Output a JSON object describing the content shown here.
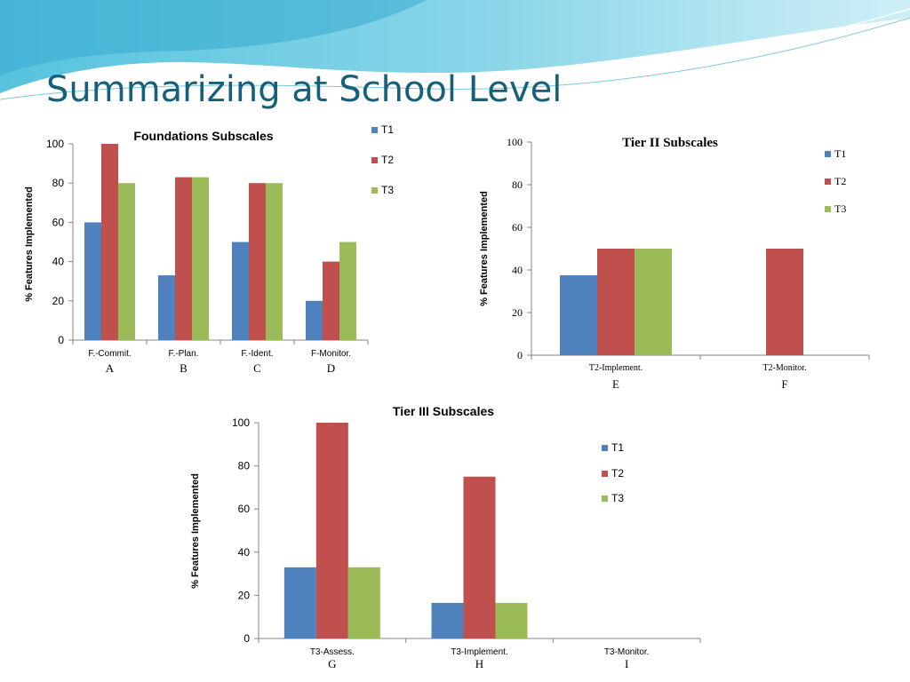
{
  "slide": {
    "title": "Summarizing at School Level"
  },
  "colors": {
    "T1": "#4f81bd",
    "T2": "#c0504d",
    "T3": "#9bbb59"
  },
  "chart_data": [
    {
      "type": "bar",
      "title": "Foundations Subscales",
      "ylabel": "% Features Implemented",
      "ylim": [
        0,
        100
      ],
      "yticks": [
        0,
        20,
        40,
        60,
        80,
        100
      ],
      "categories": [
        "F.-Commit.",
        "F.-Plan.",
        "F.-Ident.",
        "F-Monitor."
      ],
      "annotations": [
        "A",
        "B",
        "C",
        "D"
      ],
      "legend_position": "top-right",
      "grid": false,
      "series": [
        {
          "name": "T1",
          "values": [
            60,
            33,
            50,
            20
          ]
        },
        {
          "name": "T2",
          "values": [
            100,
            83,
            80,
            40
          ]
        },
        {
          "name": "T3",
          "values": [
            80,
            83,
            80,
            50
          ]
        }
      ]
    },
    {
      "type": "bar",
      "title": "Tier II Subscales",
      "ylabel": "% Features Implemented",
      "ylim": [
        0,
        100
      ],
      "yticks": [
        0,
        20,
        40,
        60,
        80,
        100
      ],
      "categories": [
        "T2-Implement.",
        "T2-Monitor."
      ],
      "annotations": [
        "E",
        "F"
      ],
      "legend_position": "top-right",
      "grid": false,
      "series": [
        {
          "name": "T1",
          "values": [
            37.5,
            0
          ]
        },
        {
          "name": "T2",
          "values": [
            50,
            50
          ]
        },
        {
          "name": "T3",
          "values": [
            50,
            0
          ]
        }
      ]
    },
    {
      "type": "bar",
      "title": "Tier III Subscales",
      "ylabel": "% Features Implemented",
      "ylim": [
        0,
        100
      ],
      "yticks": [
        0,
        20,
        40,
        60,
        80,
        100
      ],
      "categories": [
        "T3-Assess.",
        "T3-Implement.",
        "T3-Monitor."
      ],
      "annotations": [
        "G",
        "H",
        "I"
      ],
      "legend_position": "right",
      "grid": false,
      "series": [
        {
          "name": "T1",
          "values": [
            33,
            16.5,
            0
          ]
        },
        {
          "name": "T2",
          "values": [
            100,
            75,
            0
          ]
        },
        {
          "name": "T3",
          "values": [
            33,
            16.5,
            0
          ]
        }
      ]
    }
  ]
}
